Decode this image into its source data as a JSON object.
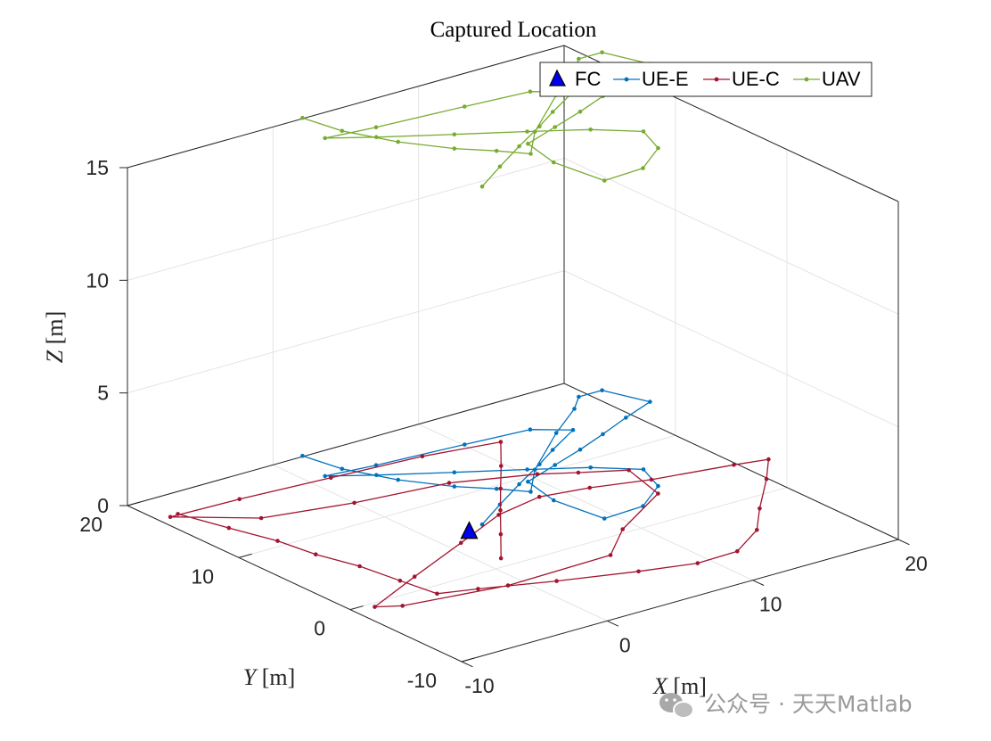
{
  "chart_data": {
    "type": "line3d",
    "title": "Captured Location",
    "xlabel": {
      "symbol": "X",
      "unit": " [m]"
    },
    "ylabel": {
      "symbol": "Y",
      "unit": " [m]"
    },
    "zlabel": {
      "symbol": "Z",
      "unit": " [m]"
    },
    "xlim": [
      -10,
      20
    ],
    "ylim": [
      -10,
      20
    ],
    "zlim": [
      0,
      15
    ],
    "xticks": [
      {
        "v": -10,
        "label": "-10"
      },
      {
        "v": 0,
        "label": "0"
      },
      {
        "v": 10,
        "label": "10"
      },
      {
        "v": 20,
        "label": "20"
      }
    ],
    "yticks": [
      {
        "v": -10,
        "label": "-10"
      },
      {
        "v": 0,
        "label": "0"
      },
      {
        "v": 10,
        "label": "10"
      },
      {
        "v": 20,
        "label": "20"
      }
    ],
    "zticks": [
      {
        "v": 0,
        "label": "0"
      },
      {
        "v": 5,
        "label": "5"
      },
      {
        "v": 10,
        "label": "10"
      },
      {
        "v": 15,
        "label": "15"
      }
    ],
    "grid": true,
    "legend_position": "top-right",
    "fc": {
      "name": "FC",
      "color": "#0000ee",
      "x": 2,
      "y": 5,
      "z": 0
    },
    "series": [
      {
        "name": "UE-E",
        "color": "#0072bd",
        "marker": "dot",
        "points": [
          [
            2.1,
            20.1,
            0
          ],
          [
            2.6,
            17.2,
            0
          ],
          [
            4.0,
            14.0,
            0
          ],
          [
            5.8,
            11.3,
            0
          ],
          [
            7.4,
            9.6,
            0
          ],
          [
            8.6,
            8.1,
            0
          ],
          [
            10.8,
            10.6,
            0
          ],
          [
            15.1,
            14.3,
            0
          ],
          [
            18.1,
            16.6,
            0
          ],
          [
            19.4,
            17.9,
            0
          ],
          [
            21.0,
            17.9,
            0
          ],
          [
            22.0,
            14.9,
            0
          ],
          [
            19.5,
            13.8,
            0
          ],
          [
            17.0,
            12.6,
            0
          ],
          [
            14.6,
            11.5,
            0
          ],
          [
            12.1,
            10.5,
            0
          ],
          [
            9.4,
            9.4,
            0
          ],
          [
            8.8,
            6.3,
            0
          ],
          [
            9.3,
            2.4,
            0
          ],
          [
            12.1,
            2.6,
            0
          ],
          [
            14.6,
            4.5,
            0
          ],
          [
            15.5,
            7.0,
            0
          ],
          [
            13.4,
            9.0,
            0
          ],
          [
            10.5,
            10.9,
            0
          ],
          [
            7.1,
            13.0,
            0
          ],
          [
            3.5,
            15.3,
            0
          ],
          [
            1.2,
            16.9,
            0
          ],
          [
            4.4,
            16.5,
            0
          ],
          [
            10.1,
            16.0,
            0
          ],
          [
            14.3,
            15.6,
            0
          ],
          [
            16.1,
            14.1,
            0
          ],
          [
            13.4,
            12.4,
            0
          ],
          [
            11.5,
            11.1,
            0
          ],
          [
            8.8,
            9.4,
            0
          ],
          [
            6.1,
            7.6,
            0
          ],
          [
            3.5,
            5.8,
            0
          ]
        ]
      },
      {
        "name": "UE-C",
        "color": "#a2142f",
        "marker": "dot",
        "points": [
          [
            -8.6,
            17.3,
            0
          ],
          [
            -7.7,
            13.9,
            0
          ],
          [
            -6.8,
            10.7,
            0
          ],
          [
            -6.4,
            7.8,
            0
          ],
          [
            -5.6,
            4.9,
            0
          ],
          [
            -5.2,
            1.8,
            0
          ],
          [
            -4.8,
            -1.0,
            0
          ],
          [
            -2.6,
            -1.8,
            0
          ],
          [
            1.5,
            -3.5,
            0
          ],
          [
            5.9,
            -5.1,
            0
          ],
          [
            9.2,
            -6.1,
            0
          ],
          [
            12.0,
            -6.0,
            0
          ],
          [
            14.8,
            -4.1,
            0
          ],
          [
            16.9,
            -1.6,
            0
          ],
          [
            19.9,
            1.7,
            0
          ],
          [
            21.8,
            4.0,
            0
          ],
          [
            19.8,
            4.5,
            0
          ],
          [
            14.9,
            5.5,
            0
          ],
          [
            11.5,
            6.6,
            0
          ],
          [
            8.5,
            7.2,
            0
          ],
          [
            5.1,
            6.4,
            0
          ],
          [
            0.9,
            4.3,
            0
          ],
          [
            -4.2,
            1.8,
            0
          ],
          [
            -8.7,
            -0.5,
            0
          ],
          [
            -7.4,
            -1.3,
            0
          ],
          [
            -1.0,
            -2.4,
            0
          ],
          [
            6.2,
            -2.2,
            0
          ],
          [
            9.1,
            0.5,
            0
          ],
          [
            13.9,
            3.6,
            0
          ],
          [
            14.8,
            7.4,
            0
          ],
          [
            12.4,
            8.8,
            0
          ],
          [
            10.5,
            10.0,
            0
          ],
          [
            5.9,
            11.9,
            0
          ],
          [
            0.0,
            12.7,
            0
          ],
          [
            -5.4,
            14.0,
            0
          ],
          [
            -9.2,
            17.2,
            0
          ],
          [
            -4.6,
            17.0,
            0
          ],
          [
            1.3,
            16.5,
            0
          ],
          [
            7.2,
            16.0,
            0
          ],
          [
            11.9,
            15.1,
            0
          ],
          [
            9.7,
            12.2,
            0
          ],
          [
            7.6,
            9.5,
            0
          ],
          [
            5.6,
            6.9,
            0
          ],
          [
            3.4,
            4.0,
            0
          ],
          [
            1.2,
            1.1,
            0
          ]
        ]
      },
      {
        "name": "UAV",
        "color": "#77ac30",
        "marker": "dot",
        "points": [
          [
            2.1,
            20.1,
            15
          ],
          [
            2.6,
            17.2,
            15
          ],
          [
            4.0,
            14.0,
            15
          ],
          [
            5.8,
            11.3,
            15
          ],
          [
            7.4,
            9.6,
            15
          ],
          [
            8.6,
            8.1,
            15
          ],
          [
            10.8,
            10.6,
            15
          ],
          [
            15.1,
            14.3,
            15
          ],
          [
            18.1,
            16.6,
            15
          ],
          [
            19.4,
            17.9,
            15
          ],
          [
            21.0,
            17.9,
            15
          ],
          [
            22.0,
            14.9,
            15
          ],
          [
            19.5,
            13.8,
            15
          ],
          [
            17.0,
            12.6,
            15
          ],
          [
            14.6,
            11.5,
            15
          ],
          [
            12.1,
            10.5,
            15
          ],
          [
            9.4,
            9.4,
            15
          ],
          [
            8.8,
            6.3,
            15
          ],
          [
            9.3,
            2.4,
            15
          ],
          [
            12.1,
            2.6,
            15
          ],
          [
            14.6,
            4.5,
            15
          ],
          [
            15.5,
            7.0,
            15
          ],
          [
            13.4,
            9.0,
            15
          ],
          [
            10.5,
            10.9,
            15
          ],
          [
            7.1,
            13.0,
            15
          ],
          [
            3.5,
            15.3,
            15
          ],
          [
            1.2,
            16.9,
            15
          ],
          [
            4.4,
            16.5,
            15
          ],
          [
            10.1,
            16.0,
            15
          ],
          [
            14.3,
            15.6,
            15
          ],
          [
            16.1,
            14.1,
            15
          ],
          [
            13.4,
            12.4,
            15
          ],
          [
            11.5,
            11.1,
            15
          ],
          [
            8.8,
            9.4,
            15
          ],
          [
            6.1,
            7.6,
            15
          ],
          [
            3.5,
            5.8,
            15
          ]
        ]
      }
    ]
  },
  "watermark": {
    "text": "公众号 · 天天Matlab",
    "icon": "wechat-icon"
  }
}
